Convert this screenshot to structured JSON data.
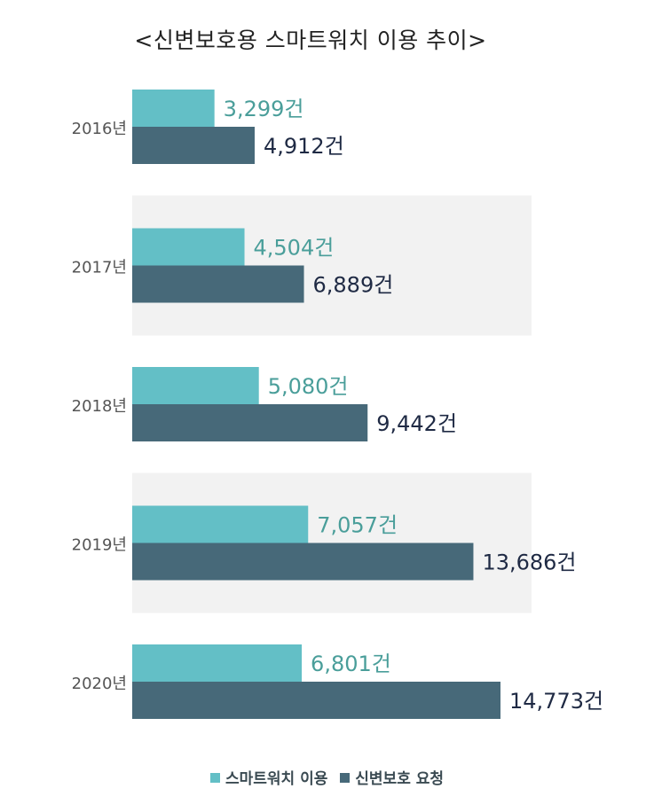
{
  "chart_data": {
    "type": "bar",
    "orientation": "horizontal",
    "title": "<신변보호용 스마트워치 이용 추이>",
    "categories": [
      "2016년",
      "2017년",
      "2018년",
      "2019년",
      "2020년"
    ],
    "series": [
      {
        "name": "스마트워치 이용",
        "color": "#63bfc6",
        "label_color": "#4a9e9a",
        "values": [
          3299,
          4504,
          5080,
          7057,
          6801
        ],
        "labels": [
          "3,299건",
          "4,504건",
          "5,080건",
          "7,057건",
          "6,801건"
        ]
      },
      {
        "name": "신변보호 요청",
        "color": "#476979",
        "label_color": "#1f2a44",
        "values": [
          4912,
          6889,
          9442,
          13686,
          14773
        ],
        "labels": [
          "4,912건",
          "6,889건",
          "9,442건",
          "13,686건",
          "14,773건"
        ]
      }
    ],
    "legend_position": "bottom-center",
    "alternating_band_color": "#f2f2f2"
  }
}
